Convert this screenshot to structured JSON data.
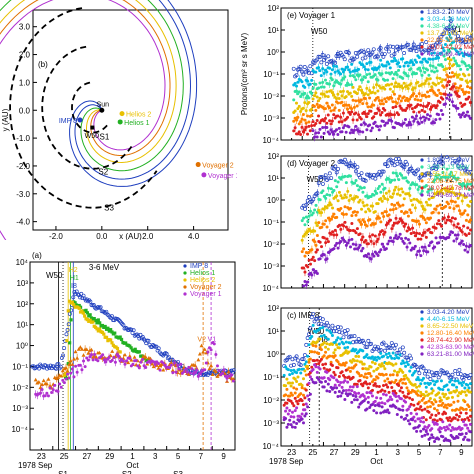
{
  "chart_data": [
    {
      "id": "orbit",
      "type": "scatter",
      "panel_label": "(b)",
      "xlabel": "x (AU)",
      "ylabel": "y (AU)",
      "xlim": [
        -3.0,
        5.5
      ],
      "ylim": [
        -4.3,
        3.6
      ],
      "xticks": [
        "-2.0",
        "0.0",
        "2.0",
        "4.0"
      ],
      "xtick_values": [
        -2,
        0,
        2,
        4
      ],
      "yticks": [
        "3.0",
        "2.0",
        "1.0",
        "0.0",
        "-1.0",
        "-2.0",
        "-3.0",
        "-4.0"
      ],
      "ytick_values": [
        3,
        2,
        1,
        0,
        -1,
        -2,
        -3,
        -4
      ],
      "bodies": [
        {
          "name": "Sun",
          "x": 0.0,
          "y": 0.0,
          "color": "#000000"
        },
        {
          "name": "IMP 8",
          "x": -0.95,
          "y": -0.35,
          "color": "#1f3fbf"
        },
        {
          "name": "Helios 2",
          "x": 0.88,
          "y": -0.12,
          "color": "#e8c000"
        },
        {
          "name": "Helios 1",
          "x": 0.8,
          "y": -0.42,
          "color": "#22b022"
        },
        {
          "name": "Voyager 2",
          "x": 4.2,
          "y": -1.95,
          "color": "#e07000"
        },
        {
          "name": "Voyager 1",
          "x": 4.45,
          "y": -2.32,
          "color": "#b030d0"
        }
      ],
      "annotations": [
        "W50",
        "S1",
        "S2",
        "S3"
      ]
    },
    {
      "id": "panel-a",
      "type": "line",
      "panel_label": "(a)",
      "energy_label": "3-6 MeV",
      "ylim_log": [
        -4,
        5
      ],
      "yticks": [
        "10⁴",
        "10³",
        "10²",
        "10¹",
        "10⁰",
        "10⁻¹",
        "10⁻²",
        "10⁻³",
        "10⁻⁴"
      ],
      "xticks": [
        "23",
        "25",
        "27",
        "29",
        "1",
        "3",
        "5",
        "7",
        "9"
      ],
      "date_label": "1978 Sep",
      "month2_label": "Oct",
      "series": [
        {
          "name": "IMP 8",
          "color": "#1f3fbf",
          "marker": "o"
        },
        {
          "name": "Helios 1",
          "color": "#22b022",
          "marker": "s"
        },
        {
          "name": "Helios 2",
          "color": "#e8c000",
          "marker": "s"
        },
        {
          "name": "Voyager 2",
          "color": "#e07000",
          "marker": "^"
        },
        {
          "name": "Voyager 1",
          "color": "#b030d0",
          "marker": "o"
        }
      ],
      "event_labels": [
        "W50",
        "H2",
        "H1",
        "I8",
        "V2",
        "V1"
      ],
      "shock_labels": [
        "S1",
        "S2",
        "S3"
      ]
    },
    {
      "id": "panel-e",
      "type": "line",
      "panel_label": "(e) Voyager 1",
      "ylabel": "Protons/(cm² sr s MeV)",
      "ylim_log": [
        -4,
        2
      ],
      "yticks": [
        "10²",
        "10¹",
        "10⁰",
        "10⁻¹",
        "10⁻²",
        "10⁻³",
        "10⁻⁴"
      ],
      "event_labels": [
        "W50",
        "V1"
      ],
      "series": [
        {
          "name": "1.83-2.70 MeV",
          "color": "#1f3fbf"
        },
        {
          "name": "3.03-4.26 MeV",
          "color": "#00b8e0"
        },
        {
          "name": "4.38-6.18 MeV",
          "color": "#30e0a0"
        },
        {
          "name": "13.7-21.00 MeV",
          "color": "#e8c000"
        },
        {
          "name": "22.05-26.81 MeV",
          "color": "#ff8000"
        },
        {
          "name": "28.01-42.92 MeV",
          "color": "#e02020"
        },
        {
          "name": "42.63-69.47 MeV",
          "color": "#8020c0"
        }
      ]
    },
    {
      "id": "panel-d",
      "type": "line",
      "panel_label": "(d) Voyager 2",
      "ylim_log": [
        -4,
        2
      ],
      "yticks": [
        "10²",
        "10¹",
        "10⁰",
        "10⁻¹",
        "10⁻²",
        "10⁻³",
        "10⁻⁴"
      ],
      "event_labels": [
        "W50",
        "V2"
      ],
      "series": [
        {
          "name": "1.80-2.75 MeV",
          "color": "#1f3fbf"
        },
        {
          "name": "3.23-4.13 MeV",
          "color": "#30e0a0"
        },
        {
          "name": "6.55-11.17 MeV",
          "color": "#e8c000"
        },
        {
          "name": "22.08-26.75 MeV",
          "color": "#ff8000"
        },
        {
          "name": "28.07-42.78 MeV",
          "color": "#e02020"
        },
        {
          "name": "42.49-69.37 MeV",
          "color": "#8020c0"
        }
      ]
    },
    {
      "id": "panel-c",
      "type": "line",
      "panel_label": "(c) IMP 8",
      "ylim_log": [
        -4,
        2
      ],
      "yticks": [
        "10²",
        "10¹",
        "10⁰",
        "10⁻¹",
        "10⁻²",
        "10⁻³",
        "10⁻⁴"
      ],
      "xticks": [
        "23",
        "25",
        "27",
        "29",
        "1",
        "3",
        "5",
        "7",
        "9"
      ],
      "date_label": "1978 Sep",
      "month2_label": "Oct",
      "event_labels": [
        "W50",
        "I8"
      ],
      "series": [
        {
          "name": "3.03-4.20 MeV",
          "color": "#1f3fbf"
        },
        {
          "name": "4.40-6.15 MeV",
          "color": "#00b8e0"
        },
        {
          "name": "8.65-22.50 MeV",
          "color": "#e8c000"
        },
        {
          "name": "12.80-16.40 MeV",
          "color": "#ff8000"
        },
        {
          "name": "28.74-42.90 MeV",
          "color": "#e02020"
        },
        {
          "name": "42.83-63.90 MeV",
          "color": "#b030d0"
        },
        {
          "name": "63.21-81.00 MeV",
          "color": "#8020c0"
        }
      ]
    }
  ]
}
